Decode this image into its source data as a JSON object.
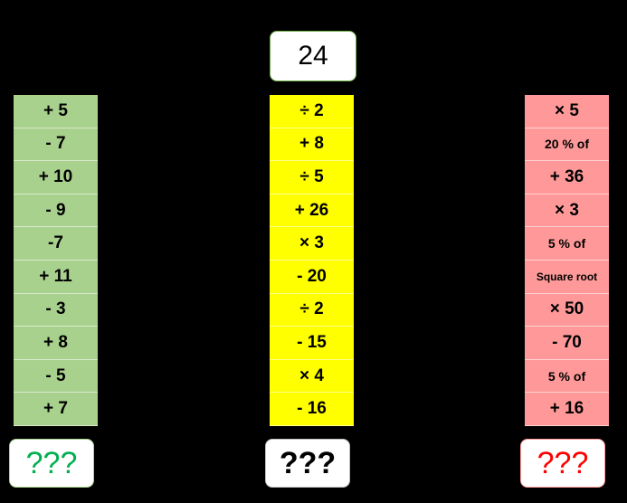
{
  "start": "24",
  "columns": [
    {
      "ops": [
        "+ 5",
        "- 7",
        "+ 10",
        "- 9",
        "-7",
        "+ 11",
        "- 3",
        "+ 8",
        "- 5",
        "+ 7"
      ],
      "answer": "???"
    },
    {
      "ops": [
        "÷ 2",
        "+ 8",
        "÷ 5",
        "+ 26",
        "× 3",
        "- 20",
        "÷ 2",
        "- 15",
        "× 4",
        "- 16"
      ],
      "answer": "???"
    },
    {
      "ops": [
        "× 5",
        "20 % of",
        "+ 36",
        "× 3",
        "5 % of",
        "Square root",
        "× 50",
        "- 70",
        "5 % of",
        "+ 16"
      ],
      "answer": "???"
    }
  ]
}
